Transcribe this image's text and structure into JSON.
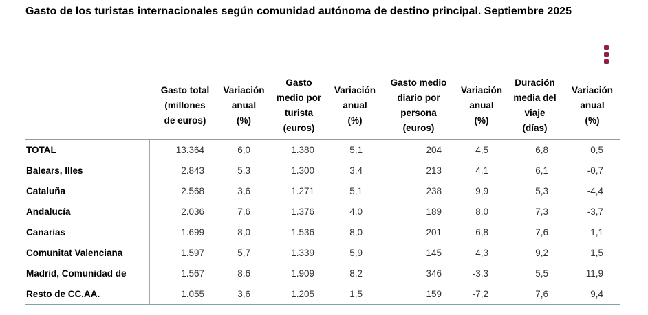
{
  "page": {
    "title": "Gasto de los turistas internacionales según comunidad autónoma de destino principal. Septiembre 2025"
  },
  "toolbar": {
    "options_menu_icon": "kebab-vertical-icon"
  },
  "colors": {
    "accent_teal_border": "#7fa5a5",
    "gray_divider": "#999999",
    "menu_icon_red": "#8e2144"
  },
  "table": {
    "columns": [
      {
        "label": "Gasto total\n(millones\nde euros)"
      },
      {
        "label": "Variación\nanual\n(%)"
      },
      {
        "label": "Gasto\nmedio por\nturista\n(euros)"
      },
      {
        "label": "Variación\nanual\n(%)"
      },
      {
        "label": "Gasto medio\ndiario por\npersona\n(euros)"
      },
      {
        "label": "Variación\nanual\n(%)"
      },
      {
        "label": "Duración\nmedia del\nviaje\n(días)"
      },
      {
        "label": "Variación\nanual\n(%)"
      }
    ],
    "rows": [
      {
        "label": "TOTAL",
        "values": [
          "13.364",
          "6,0",
          "1.380",
          "5,1",
          "204",
          "4,5",
          "6,8",
          "0,5"
        ]
      },
      {
        "label": "Balears, Illes",
        "values": [
          "2.843",
          "5,3",
          "1.300",
          "3,4",
          "213",
          "4,1",
          "6,1",
          "-0,7"
        ]
      },
      {
        "label": "Cataluña",
        "values": [
          "2.568",
          "3,6",
          "1.271",
          "5,1",
          "238",
          "9,9",
          "5,3",
          "-4,4"
        ]
      },
      {
        "label": "Andalucía",
        "values": [
          "2.036",
          "7,6",
          "1.376",
          "4,0",
          "189",
          "8,0",
          "7,3",
          "-3,7"
        ]
      },
      {
        "label": "Canarias",
        "values": [
          "1.699",
          "8,0",
          "1.536",
          "8,0",
          "201",
          "6,8",
          "7,6",
          "1,1"
        ]
      },
      {
        "label": "Comunitat Valenciana",
        "values": [
          "1.597",
          "5,7",
          "1.339",
          "5,9",
          "145",
          "4,3",
          "9,2",
          "1,5"
        ]
      },
      {
        "label": "Madrid, Comunidad de",
        "values": [
          "1.567",
          "8,6",
          "1.909",
          "8,2",
          "346",
          "-3,3",
          "5,5",
          "11,9"
        ]
      },
      {
        "label": "Resto de CC.AA.",
        "values": [
          "1.055",
          "3,6",
          "1.205",
          "1,5",
          "159",
          "-7,2",
          "7,6",
          "9,4"
        ]
      }
    ]
  }
}
